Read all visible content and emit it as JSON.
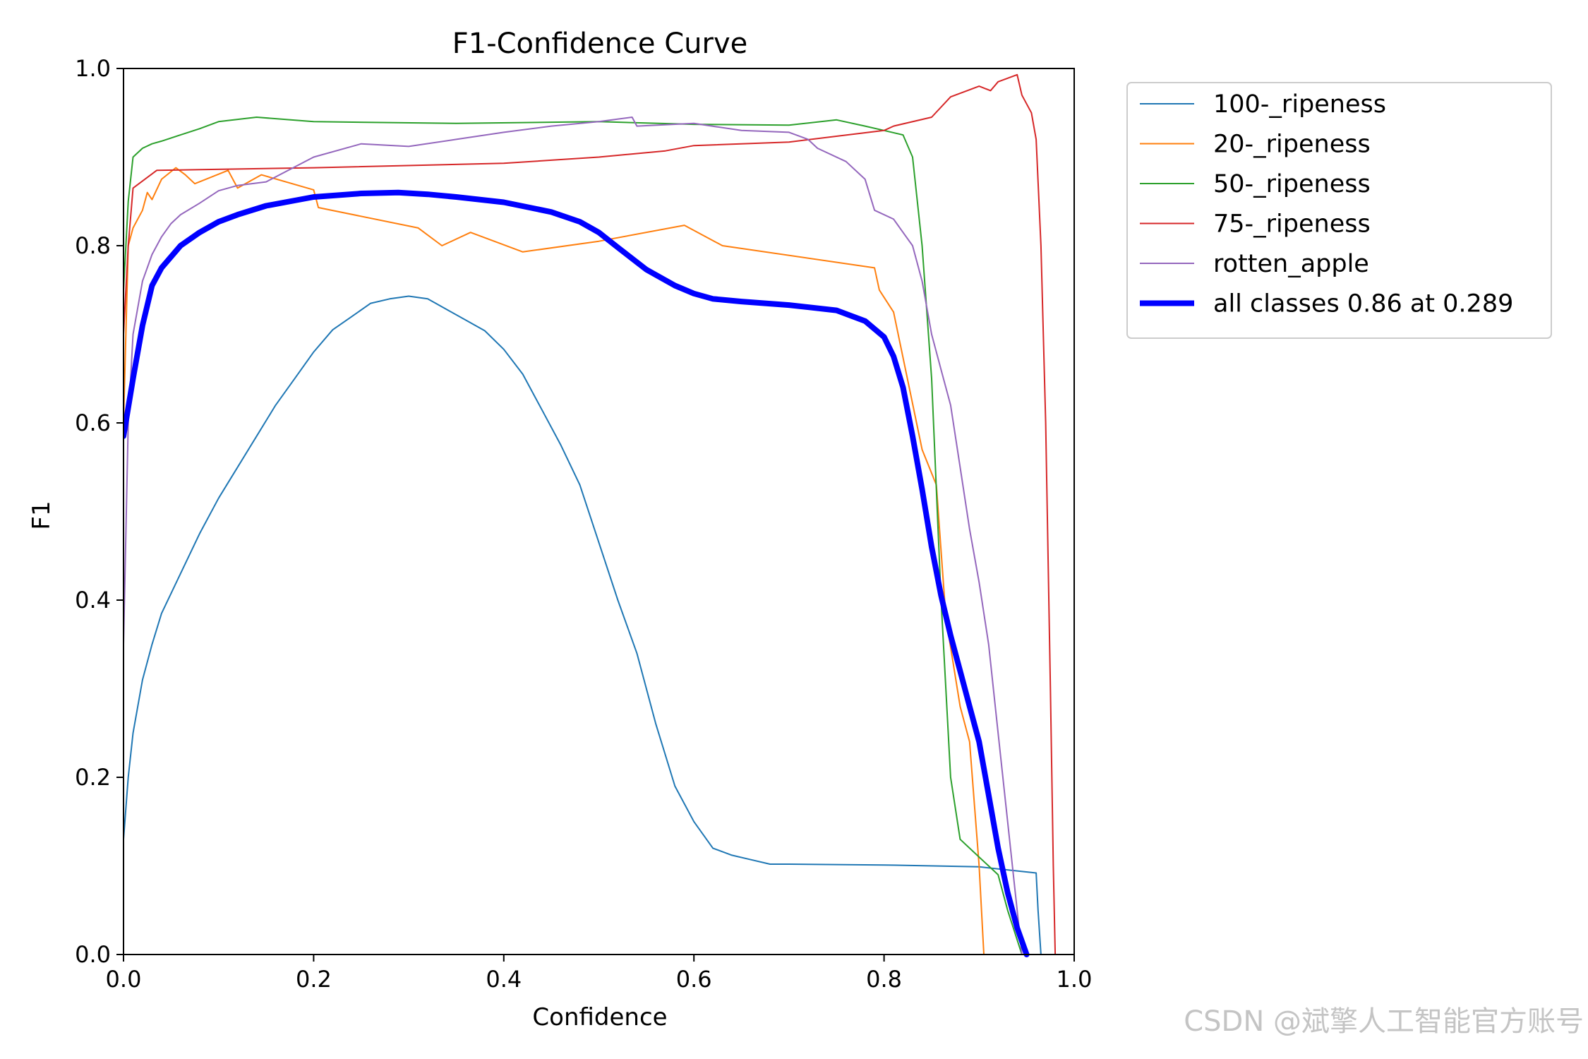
{
  "chart_data": {
    "type": "line",
    "title": "F1-Confidence Curve",
    "xlabel": "Confidence",
    "ylabel": "F1",
    "xlim": [
      0,
      1
    ],
    "ylim": [
      0,
      1
    ],
    "xticks": [
      "0.0",
      "0.2",
      "0.4",
      "0.6",
      "0.8",
      "1.0"
    ],
    "yticks": [
      "0.0",
      "0.2",
      "0.4",
      "0.6",
      "0.8",
      "1.0"
    ],
    "grid": false,
    "legend_position": "outside-top-right",
    "series": [
      {
        "name": "100-_ripeness",
        "color": "#1f77b4",
        "width": 2,
        "points": [
          [
            0,
            0.13
          ],
          [
            0.005,
            0.2
          ],
          [
            0.01,
            0.25
          ],
          [
            0.02,
            0.31
          ],
          [
            0.03,
            0.35
          ],
          [
            0.04,
            0.385
          ],
          [
            0.06,
            0.43
          ],
          [
            0.08,
            0.475
          ],
          [
            0.1,
            0.515
          ],
          [
            0.12,
            0.55
          ],
          [
            0.14,
            0.585
          ],
          [
            0.16,
            0.62
          ],
          [
            0.18,
            0.65
          ],
          [
            0.2,
            0.68
          ],
          [
            0.22,
            0.705
          ],
          [
            0.24,
            0.72
          ],
          [
            0.26,
            0.735
          ],
          [
            0.28,
            0.74
          ],
          [
            0.3,
            0.743
          ],
          [
            0.32,
            0.74
          ],
          [
            0.34,
            0.728
          ],
          [
            0.36,
            0.716
          ],
          [
            0.38,
            0.704
          ],
          [
            0.4,
            0.683
          ],
          [
            0.42,
            0.655
          ],
          [
            0.44,
            0.615
          ],
          [
            0.46,
            0.575
          ],
          [
            0.48,
            0.53
          ],
          [
            0.5,
            0.465
          ],
          [
            0.52,
            0.4
          ],
          [
            0.54,
            0.34
          ],
          [
            0.56,
            0.26
          ],
          [
            0.58,
            0.19
          ],
          [
            0.6,
            0.15
          ],
          [
            0.62,
            0.12
          ],
          [
            0.64,
            0.112
          ],
          [
            0.66,
            0.107
          ],
          [
            0.68,
            0.102
          ],
          [
            0.7,
            0.102
          ],
          [
            0.8,
            0.101
          ],
          [
            0.9,
            0.099
          ],
          [
            0.96,
            0.092
          ],
          [
            0.962,
            0.05
          ],
          [
            0.965,
            0.0
          ]
        ]
      },
      {
        "name": "20-_ripeness",
        "color": "#ff7f0e",
        "width": 2,
        "points": [
          [
            0,
            0.6
          ],
          [
            0.005,
            0.8
          ],
          [
            0.01,
            0.82
          ],
          [
            0.02,
            0.84
          ],
          [
            0.025,
            0.86
          ],
          [
            0.03,
            0.852
          ],
          [
            0.04,
            0.875
          ],
          [
            0.055,
            0.888
          ],
          [
            0.065,
            0.88
          ],
          [
            0.075,
            0.87
          ],
          [
            0.11,
            0.885
          ],
          [
            0.12,
            0.865
          ],
          [
            0.145,
            0.88
          ],
          [
            0.2,
            0.863
          ],
          [
            0.205,
            0.843
          ],
          [
            0.31,
            0.82
          ],
          [
            0.335,
            0.8
          ],
          [
            0.365,
            0.815
          ],
          [
            0.42,
            0.793
          ],
          [
            0.5,
            0.805
          ],
          [
            0.59,
            0.823
          ],
          [
            0.63,
            0.8
          ],
          [
            0.79,
            0.775
          ],
          [
            0.795,
            0.75
          ],
          [
            0.81,
            0.725
          ],
          [
            0.84,
            0.57
          ],
          [
            0.855,
            0.53
          ],
          [
            0.865,
            0.38
          ],
          [
            0.88,
            0.28
          ],
          [
            0.89,
            0.24
          ],
          [
            0.9,
            0.1
          ],
          [
            0.905,
            0.0
          ]
        ]
      },
      {
        "name": "50-_ripeness",
        "color": "#2ca02c",
        "width": 2,
        "points": [
          [
            0,
            0.75
          ],
          [
            0.005,
            0.85
          ],
          [
            0.01,
            0.9
          ],
          [
            0.02,
            0.91
          ],
          [
            0.03,
            0.915
          ],
          [
            0.04,
            0.918
          ],
          [
            0.06,
            0.925
          ],
          [
            0.08,
            0.932
          ],
          [
            0.1,
            0.94
          ],
          [
            0.14,
            0.945
          ],
          [
            0.2,
            0.94
          ],
          [
            0.35,
            0.938
          ],
          [
            0.5,
            0.94
          ],
          [
            0.6,
            0.937
          ],
          [
            0.7,
            0.936
          ],
          [
            0.75,
            0.942
          ],
          [
            0.78,
            0.935
          ],
          [
            0.8,
            0.93
          ],
          [
            0.82,
            0.925
          ],
          [
            0.83,
            0.9
          ],
          [
            0.84,
            0.8
          ],
          [
            0.85,
            0.65
          ],
          [
            0.86,
            0.4
          ],
          [
            0.87,
            0.2
          ],
          [
            0.88,
            0.13
          ],
          [
            0.9,
            0.11
          ],
          [
            0.92,
            0.09
          ],
          [
            0.93,
            0.05
          ],
          [
            0.945,
            0.0
          ]
        ]
      },
      {
        "name": "75-_ripeness",
        "color": "#d62728",
        "width": 2,
        "points": [
          [
            0,
            0.7
          ],
          [
            0.005,
            0.8
          ],
          [
            0.01,
            0.865
          ],
          [
            0.035,
            0.885
          ],
          [
            0.2,
            0.888
          ],
          [
            0.4,
            0.893
          ],
          [
            0.5,
            0.9
          ],
          [
            0.57,
            0.907
          ],
          [
            0.6,
            0.913
          ],
          [
            0.7,
            0.917
          ],
          [
            0.8,
            0.93
          ],
          [
            0.81,
            0.935
          ],
          [
            0.85,
            0.945
          ],
          [
            0.87,
            0.968
          ],
          [
            0.9,
            0.98
          ],
          [
            0.912,
            0.975
          ],
          [
            0.92,
            0.985
          ],
          [
            0.94,
            0.993
          ],
          [
            0.945,
            0.97
          ],
          [
            0.955,
            0.95
          ],
          [
            0.96,
            0.92
          ],
          [
            0.965,
            0.8
          ],
          [
            0.97,
            0.6
          ],
          [
            0.975,
            0.3
          ],
          [
            0.978,
            0.1
          ],
          [
            0.98,
            0.0
          ]
        ]
      },
      {
        "name": "rotten_apple",
        "color": "#9467bd",
        "width": 2,
        "points": [
          [
            0,
            0.35
          ],
          [
            0.005,
            0.6
          ],
          [
            0.01,
            0.7
          ],
          [
            0.02,
            0.76
          ],
          [
            0.03,
            0.79
          ],
          [
            0.04,
            0.81
          ],
          [
            0.05,
            0.825
          ],
          [
            0.06,
            0.835
          ],
          [
            0.08,
            0.848
          ],
          [
            0.1,
            0.862
          ],
          [
            0.12,
            0.868
          ],
          [
            0.15,
            0.872
          ],
          [
            0.2,
            0.9
          ],
          [
            0.25,
            0.915
          ],
          [
            0.3,
            0.912
          ],
          [
            0.35,
            0.92
          ],
          [
            0.4,
            0.928
          ],
          [
            0.45,
            0.935
          ],
          [
            0.5,
            0.94
          ],
          [
            0.535,
            0.945
          ],
          [
            0.54,
            0.935
          ],
          [
            0.6,
            0.938
          ],
          [
            0.65,
            0.93
          ],
          [
            0.7,
            0.928
          ],
          [
            0.72,
            0.92
          ],
          [
            0.73,
            0.91
          ],
          [
            0.76,
            0.895
          ],
          [
            0.78,
            0.875
          ],
          [
            0.79,
            0.84
          ],
          [
            0.81,
            0.83
          ],
          [
            0.82,
            0.815
          ],
          [
            0.83,
            0.8
          ],
          [
            0.84,
            0.76
          ],
          [
            0.85,
            0.7
          ],
          [
            0.86,
            0.66
          ],
          [
            0.87,
            0.62
          ],
          [
            0.88,
            0.55
          ],
          [
            0.89,
            0.48
          ],
          [
            0.9,
            0.42
          ],
          [
            0.91,
            0.35
          ],
          [
            0.92,
            0.25
          ],
          [
            0.93,
            0.15
          ],
          [
            0.94,
            0.05
          ],
          [
            0.945,
            0.0
          ]
        ]
      },
      {
        "name": "all classes 0.86 at 0.289",
        "color": "#0000ff",
        "width": 8,
        "points": [
          [
            0,
            0.585
          ],
          [
            0.01,
            0.65
          ],
          [
            0.02,
            0.71
          ],
          [
            0.03,
            0.755
          ],
          [
            0.04,
            0.775
          ],
          [
            0.06,
            0.8
          ],
          [
            0.08,
            0.815
          ],
          [
            0.1,
            0.827
          ],
          [
            0.12,
            0.835
          ],
          [
            0.15,
            0.845
          ],
          [
            0.18,
            0.851
          ],
          [
            0.2,
            0.855
          ],
          [
            0.25,
            0.859
          ],
          [
            0.289,
            0.86
          ],
          [
            0.32,
            0.858
          ],
          [
            0.35,
            0.855
          ],
          [
            0.4,
            0.849
          ],
          [
            0.45,
            0.838
          ],
          [
            0.48,
            0.827
          ],
          [
            0.5,
            0.815
          ],
          [
            0.52,
            0.798
          ],
          [
            0.55,
            0.773
          ],
          [
            0.58,
            0.755
          ],
          [
            0.6,
            0.746
          ],
          [
            0.62,
            0.74
          ],
          [
            0.65,
            0.737
          ],
          [
            0.7,
            0.733
          ],
          [
            0.75,
            0.727
          ],
          [
            0.78,
            0.715
          ],
          [
            0.8,
            0.697
          ],
          [
            0.81,
            0.675
          ],
          [
            0.82,
            0.64
          ],
          [
            0.83,
            0.585
          ],
          [
            0.84,
            0.525
          ],
          [
            0.85,
            0.46
          ],
          [
            0.86,
            0.405
          ],
          [
            0.87,
            0.36
          ],
          [
            0.88,
            0.32
          ],
          [
            0.89,
            0.28
          ],
          [
            0.9,
            0.24
          ],
          [
            0.91,
            0.18
          ],
          [
            0.92,
            0.12
          ],
          [
            0.93,
            0.07
          ],
          [
            0.94,
            0.03
          ],
          [
            0.95,
            0.0
          ]
        ]
      }
    ]
  },
  "watermark": "CSDN @斌擎人工智能官方账号"
}
